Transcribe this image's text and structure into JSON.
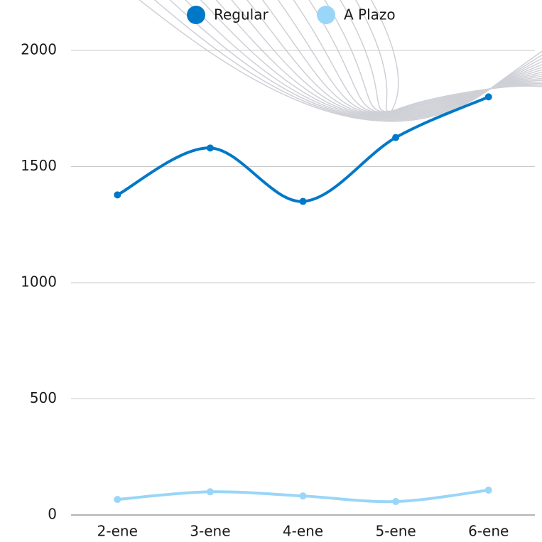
{
  "chart_data": {
    "type": "line",
    "categories": [
      "2-ene",
      "3-ene",
      "4-ene",
      "5-ene",
      "6-ene"
    ],
    "series": [
      {
        "name": "Regular",
        "color": "#0078c8",
        "values": [
          1378,
          1580,
          1350,
          1625,
          1800
        ]
      },
      {
        "name": "A Plazo",
        "color": "#99d6f7",
        "values": [
          67,
          100,
          82,
          58,
          107
        ]
      }
    ],
    "ylim": [
      0,
      2000
    ],
    "yticks": [
      0,
      500,
      1000,
      1500,
      2000
    ],
    "grid": true,
    "legend": "top",
    "smooth": true
  }
}
